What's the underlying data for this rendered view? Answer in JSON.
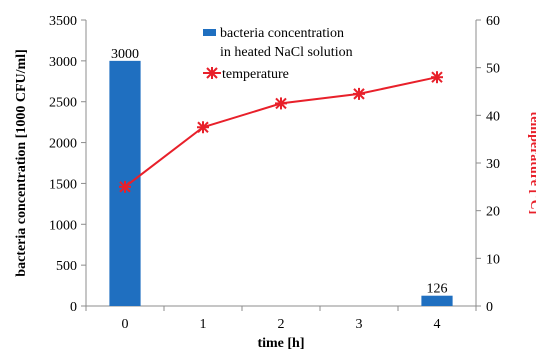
{
  "chart_data": {
    "type": "bar",
    "xlabel": "time [h]",
    "ylabel_left": "bacteria concentration  [1000 CFU/ml]",
    "ylabel_right": "temperature  [°C]",
    "categories": [
      "0",
      "1",
      "2",
      "3",
      "4"
    ],
    "ylim_left": [
      0,
      3500
    ],
    "ylim_right": [
      0,
      60
    ],
    "yticks_left": [
      "0",
      "500",
      "1000",
      "1500",
      "2000",
      "2500",
      "3000",
      "3500"
    ],
    "yticks_right": [
      "0",
      "10",
      "20",
      "30",
      "40",
      "50",
      "60"
    ],
    "series": [
      {
        "name": "bacteria concentration in heated NaCl solution",
        "type": "bar",
        "axis": "left",
        "x": [
          0,
          4
        ],
        "values": [
          3000,
          126
        ],
        "labels": [
          "3000",
          "126"
        ],
        "color": "#1f6fc0"
      },
      {
        "name": "temperature",
        "type": "line",
        "axis": "right",
        "x": [
          0,
          1,
          2,
          3,
          4
        ],
        "values": [
          25,
          37.5,
          42.5,
          44.5,
          48
        ],
        "color": "#e8202a"
      }
    ],
    "legend": {
      "placement": "top-center",
      "bar_line1": "bacteria concentration",
      "bar_line2": "in heated NaCl solution",
      "line_label": "temperature"
    },
    "grid": false
  }
}
